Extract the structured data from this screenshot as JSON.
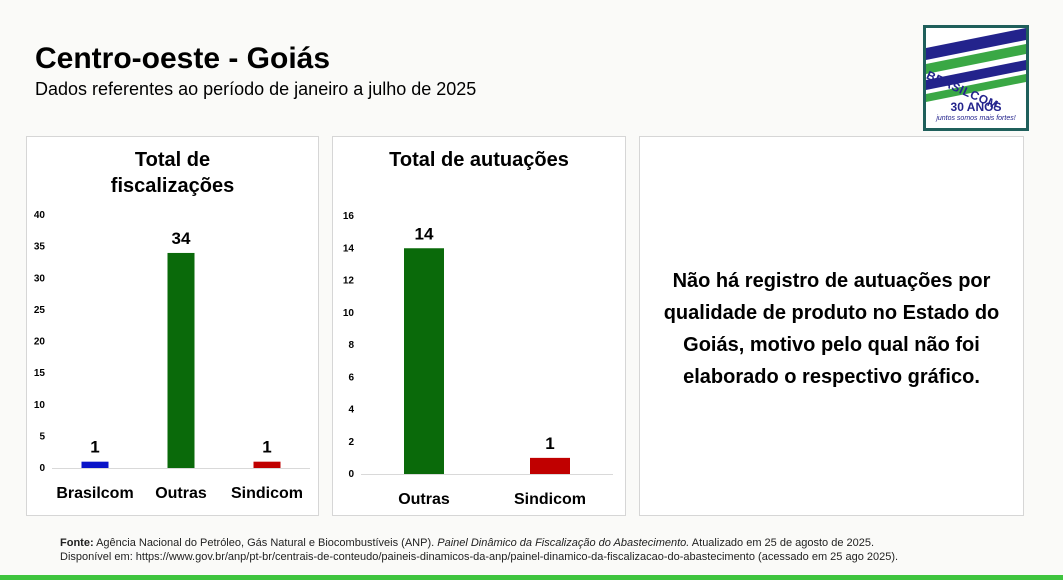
{
  "header": {
    "title": "Centro-oeste - Goiás",
    "subtitle": "Dados referentes ao período de janeiro a julho de 2025"
  },
  "logo": {
    "word": "BRASILCOM",
    "years": "30 ANOS",
    "tagline": "juntos somos mais fortes!"
  },
  "chart_data": [
    {
      "type": "bar",
      "title": "Total de fiscalizações",
      "title_lines": [
        "Total de",
        "fiscalizações"
      ],
      "categories": [
        "Brasilcom",
        "Outras",
        "Sindicom"
      ],
      "values": [
        1,
        34,
        1
      ],
      "colors": [
        "#0a14c8",
        "#0a6a0a",
        "#c00000"
      ],
      "ylim": [
        0,
        40
      ],
      "yticks": [
        0,
        5,
        10,
        15,
        20,
        25,
        30,
        35,
        40
      ],
      "xlabel": "",
      "ylabel": "",
      "grid": false,
      "legend": "none"
    },
    {
      "type": "bar",
      "title": "Total de autuações",
      "title_lines": [
        "Total de autuações"
      ],
      "categories": [
        "Outras",
        "Sindicom"
      ],
      "values": [
        14,
        1
      ],
      "colors": [
        "#0a6a0a",
        "#c00000"
      ],
      "ylim": [
        0,
        16
      ],
      "yticks": [
        0,
        2,
        4,
        6,
        8,
        10,
        12,
        14,
        16
      ],
      "xlabel": "",
      "ylabel": "",
      "grid": false,
      "legend": "none"
    }
  ],
  "note": {
    "text": "Não há registro de autuações por qualidade de produto no Estado do Goiás, motivo pelo qual não foi elaborado o respectivo gráfico."
  },
  "footer": {
    "source_label": "Fonte:",
    "source_agency": "Agência Nacional do Petróleo, Gás Natural e Biocombustíveis (ANP).",
    "source_title": "Painel Dinâmico da Fiscalização do Abastecimento.",
    "source_updated": "Atualizado em 25 de agosto de 2025.",
    "available_at": "Disponível em: https://www.gov.br/anp/pt-br/centrais-de-conteudo/paineis-dinamicos-da-anp/painel-dinamico-da-fiscalizacao-do-abastecimento (acessado em 25 ago 2025)."
  }
}
